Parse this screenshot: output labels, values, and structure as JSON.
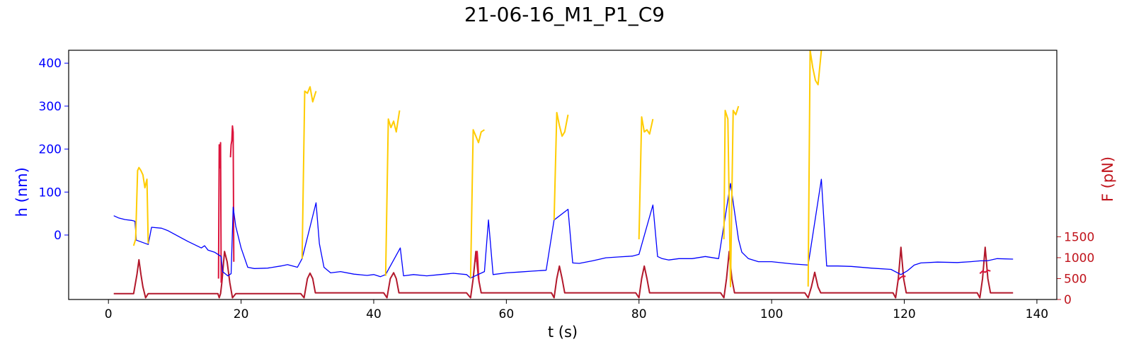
{
  "chart_data": {
    "type": "line",
    "title": "21-06-16_M1_P1_C9",
    "xlabel": "t (s)",
    "ylabel_left": "h (nm)",
    "ylabel_right": "F (pN)",
    "xlim": [
      -6,
      143
    ],
    "ylim_left": [
      -150,
      430
    ],
    "ylim_right": [
      0,
      5960
    ],
    "x_ticks": [
      0,
      20,
      40,
      60,
      80,
      100,
      120,
      140
    ],
    "y_left_ticks": [
      0,
      100,
      200,
      300,
      400
    ],
    "y_right_ticks": [
      0,
      500,
      1000,
      1500
    ],
    "colors": {
      "h_series": "#0000ff",
      "h_high_segments": "#ffcc00",
      "force_series": "#b2182b",
      "force_high_segments": "#dc143c",
      "left_axis": "#0000ff",
      "right_axis": "#c0141c"
    },
    "series": [
      {
        "axis": "left",
        "color": "#0000ff",
        "x": [
          0.8,
          1.5,
          2.5,
          3.5,
          4.0,
          4.2,
          6.0,
          6.5,
          8.0,
          9.0,
          12.0,
          14.0,
          14.5,
          15.0,
          16.0,
          17.0,
          17.2,
          18.0,
          18.5,
          18.8,
          19.2,
          20.0,
          21.0,
          22.0,
          24.0,
          26.0,
          27.0,
          28.5,
          29.2,
          31.3,
          31.8,
          32.5,
          33.5,
          35.0,
          37.0,
          39.0,
          40.0,
          41.0,
          41.8,
          44.0,
          44.5,
          46.0,
          48.0,
          50.0,
          52.0,
          54.0,
          54.6,
          56.7,
          57.3,
          58.0,
          60.0,
          62.0,
          64.0,
          66.0,
          67.2,
          69.3,
          70.0,
          71.0,
          73.0,
          75.0,
          77.0,
          79.0,
          80.0,
          82.1,
          82.8,
          83.5,
          84.5,
          86.0,
          88.0,
          90.0,
          92.0,
          93.8,
          95.0,
          95.5,
          96.5,
          98.0,
          100.0,
          103.0,
          105.5,
          107.5,
          108.3,
          110.0,
          112.0,
          115.0,
          118.0,
          119.5,
          120.5,
          121.5,
          122.5,
          125.0,
          128.0,
          130.0,
          131.5,
          132.5,
          134.0,
          136.4
        ],
        "y": [
          45,
          40,
          36,
          34,
          32,
          -12,
          -22,
          18,
          16,
          10,
          -15,
          -30,
          -25,
          -35,
          -40,
          -50,
          -85,
          -95,
          -90,
          65,
          20,
          -30,
          -75,
          -78,
          -77,
          -72,
          -69,
          -75,
          -55,
          75,
          -20,
          -75,
          -88,
          -85,
          -91,
          -94,
          -92,
          -97,
          -92,
          -30,
          -95,
          -92,
          -95,
          -92,
          -89,
          -92,
          -100,
          -85,
          35,
          -92,
          -88,
          -86,
          -84,
          -82,
          35,
          60,
          -65,
          -66,
          -60,
          -53,
          -51,
          -49,
          -45,
          70,
          -50,
          -55,
          -58,
          -55,
          -55,
          -50,
          -55,
          120,
          -10,
          -40,
          -55,
          -62,
          -62,
          -67,
          -70,
          130,
          -72,
          -72,
          -73,
          -77,
          -80,
          -92,
          -83,
          -70,
          -65,
          -63,
          -64,
          -62,
          -60,
          -60,
          -55,
          -56
        ]
      },
      {
        "axis": "left",
        "color": "#ffcc00",
        "segments": [
          {
            "x": [
              3.8,
              4.1,
              4.4,
              4.6,
              4.9,
              5.2,
              5.5,
              5.8,
              6.0
            ],
            "y": [
              -25,
              -10,
              150,
              157,
              150,
              140,
              110,
              130,
              -20
            ]
          },
          {
            "x": [
              29.2,
              29.6,
              30.0,
              30.4,
              30.8,
              31.3
            ],
            "y": [
              -55,
              335,
              330,
              345,
              310,
              335
            ]
          },
          {
            "x": [
              41.8,
              42.2,
              42.6,
              43.0,
              43.4,
              43.9
            ],
            "y": [
              -95,
              270,
              250,
              265,
              240,
              290
            ]
          },
          {
            "x": [
              54.6,
              55.0,
              55.4,
              55.8,
              56.2,
              56.7
            ],
            "y": [
              -100,
              245,
              230,
              215,
              240,
              245
            ]
          },
          {
            "x": [
              67.2,
              67.6,
              68.0,
              68.4,
              68.8,
              69.3
            ],
            "y": [
              35,
              285,
              255,
              230,
              240,
              280
            ]
          },
          {
            "x": [
              80.0,
              80.4,
              80.8,
              81.2,
              81.6,
              82.1
            ],
            "y": [
              -10,
              275,
              240,
              245,
              235,
              270
            ]
          },
          {
            "x": [
              92.8,
              93.0,
              93.4,
              93.8,
              94.2,
              94.6,
              95.0
            ],
            "y": [
              -10,
              290,
              270,
              -120,
              290,
              280,
              300
            ]
          },
          {
            "x": [
              105.5,
              105.8,
              106.2,
              106.6,
              107.0,
              107.5
            ],
            "y": [
              -120,
              430,
              390,
              360,
              350,
              430
            ]
          }
        ]
      },
      {
        "axis": "right",
        "color": "#b2182b",
        "x": [
          0.8,
          3.8,
          4.3,
          4.6,
          4.9,
          5.2,
          5.6,
          6.0,
          6.5,
          16.5,
          16.7,
          16.9,
          17.1,
          17.5,
          17.9,
          18.3,
          18.7,
          19.2,
          29.0,
          29.5,
          30.0,
          30.4,
          30.8,
          31.2,
          31.8,
          41.5,
          42.0,
          42.5,
          43.0,
          43.4,
          43.8,
          44.3,
          54.0,
          54.6,
          55.0,
          55.4,
          55.8,
          56.2,
          56.9,
          66.8,
          67.2,
          67.6,
          68.0,
          68.4,
          68.8,
          69.4,
          79.5,
          80.0,
          80.4,
          80.8,
          81.2,
          81.6,
          82.2,
          92.3,
          92.8,
          93.2,
          93.6,
          94.0,
          94.4,
          95.2,
          105.0,
          105.5,
          106.0,
          106.5,
          107.0,
          107.4,
          108.0,
          118.3,
          118.7,
          119.1,
          119.5,
          119.9,
          120.3,
          120.9,
          131.0,
          131.4,
          131.8,
          132.2,
          132.6,
          133.0,
          133.5,
          136.4
        ],
        "y": [
          140,
          140,
          600,
          950,
          600,
          300,
          40,
          140,
          140,
          140,
          40,
          140,
          400,
          1150,
          900,
          400,
          40,
          140,
          140,
          40,
          500,
          630,
          500,
          160,
          160,
          160,
          40,
          500,
          640,
          500,
          160,
          160,
          160,
          40,
          500,
          1150,
          500,
          160,
          160,
          160,
          40,
          500,
          800,
          500,
          160,
          160,
          160,
          40,
          500,
          800,
          500,
          160,
          160,
          160,
          40,
          500,
          1150,
          500,
          160,
          160,
          160,
          40,
          300,
          650,
          300,
          160,
          160,
          160,
          40,
          500,
          1250,
          500,
          160,
          160,
          160,
          40,
          500,
          1250,
          500,
          160,
          160,
          160
        ]
      },
      {
        "axis": "right",
        "color": "#dc143c",
        "segments": [
          {
            "x": [
              16.6,
              16.7,
              16.8,
              16.9,
              17.0
            ],
            "y": [
              500,
              3700,
              3150,
              3750,
              400
            ]
          },
          {
            "x": [
              18.4,
              18.5,
              18.6,
              18.7,
              18.8,
              18.9
            ],
            "y": [
              3400,
              3700,
              3800,
              4150,
              4000,
              900
            ]
          },
          {
            "x": [
              55.5,
              55.6,
              55.7,
              55.8,
              55.9
            ],
            "y": [
              900,
              1150,
              900,
              600,
              400
            ]
          },
          {
            "x": [
              119.0,
              119.4,
              119.8,
              120.2
            ],
            "y": [
              450,
              520,
              560,
              550
            ]
          },
          {
            "x": [
              131.4,
              131.8,
              132.2,
              132.6,
              133.0
            ],
            "y": [
              620,
              680,
              650,
              700,
              680
            ]
          }
        ]
      }
    ]
  }
}
